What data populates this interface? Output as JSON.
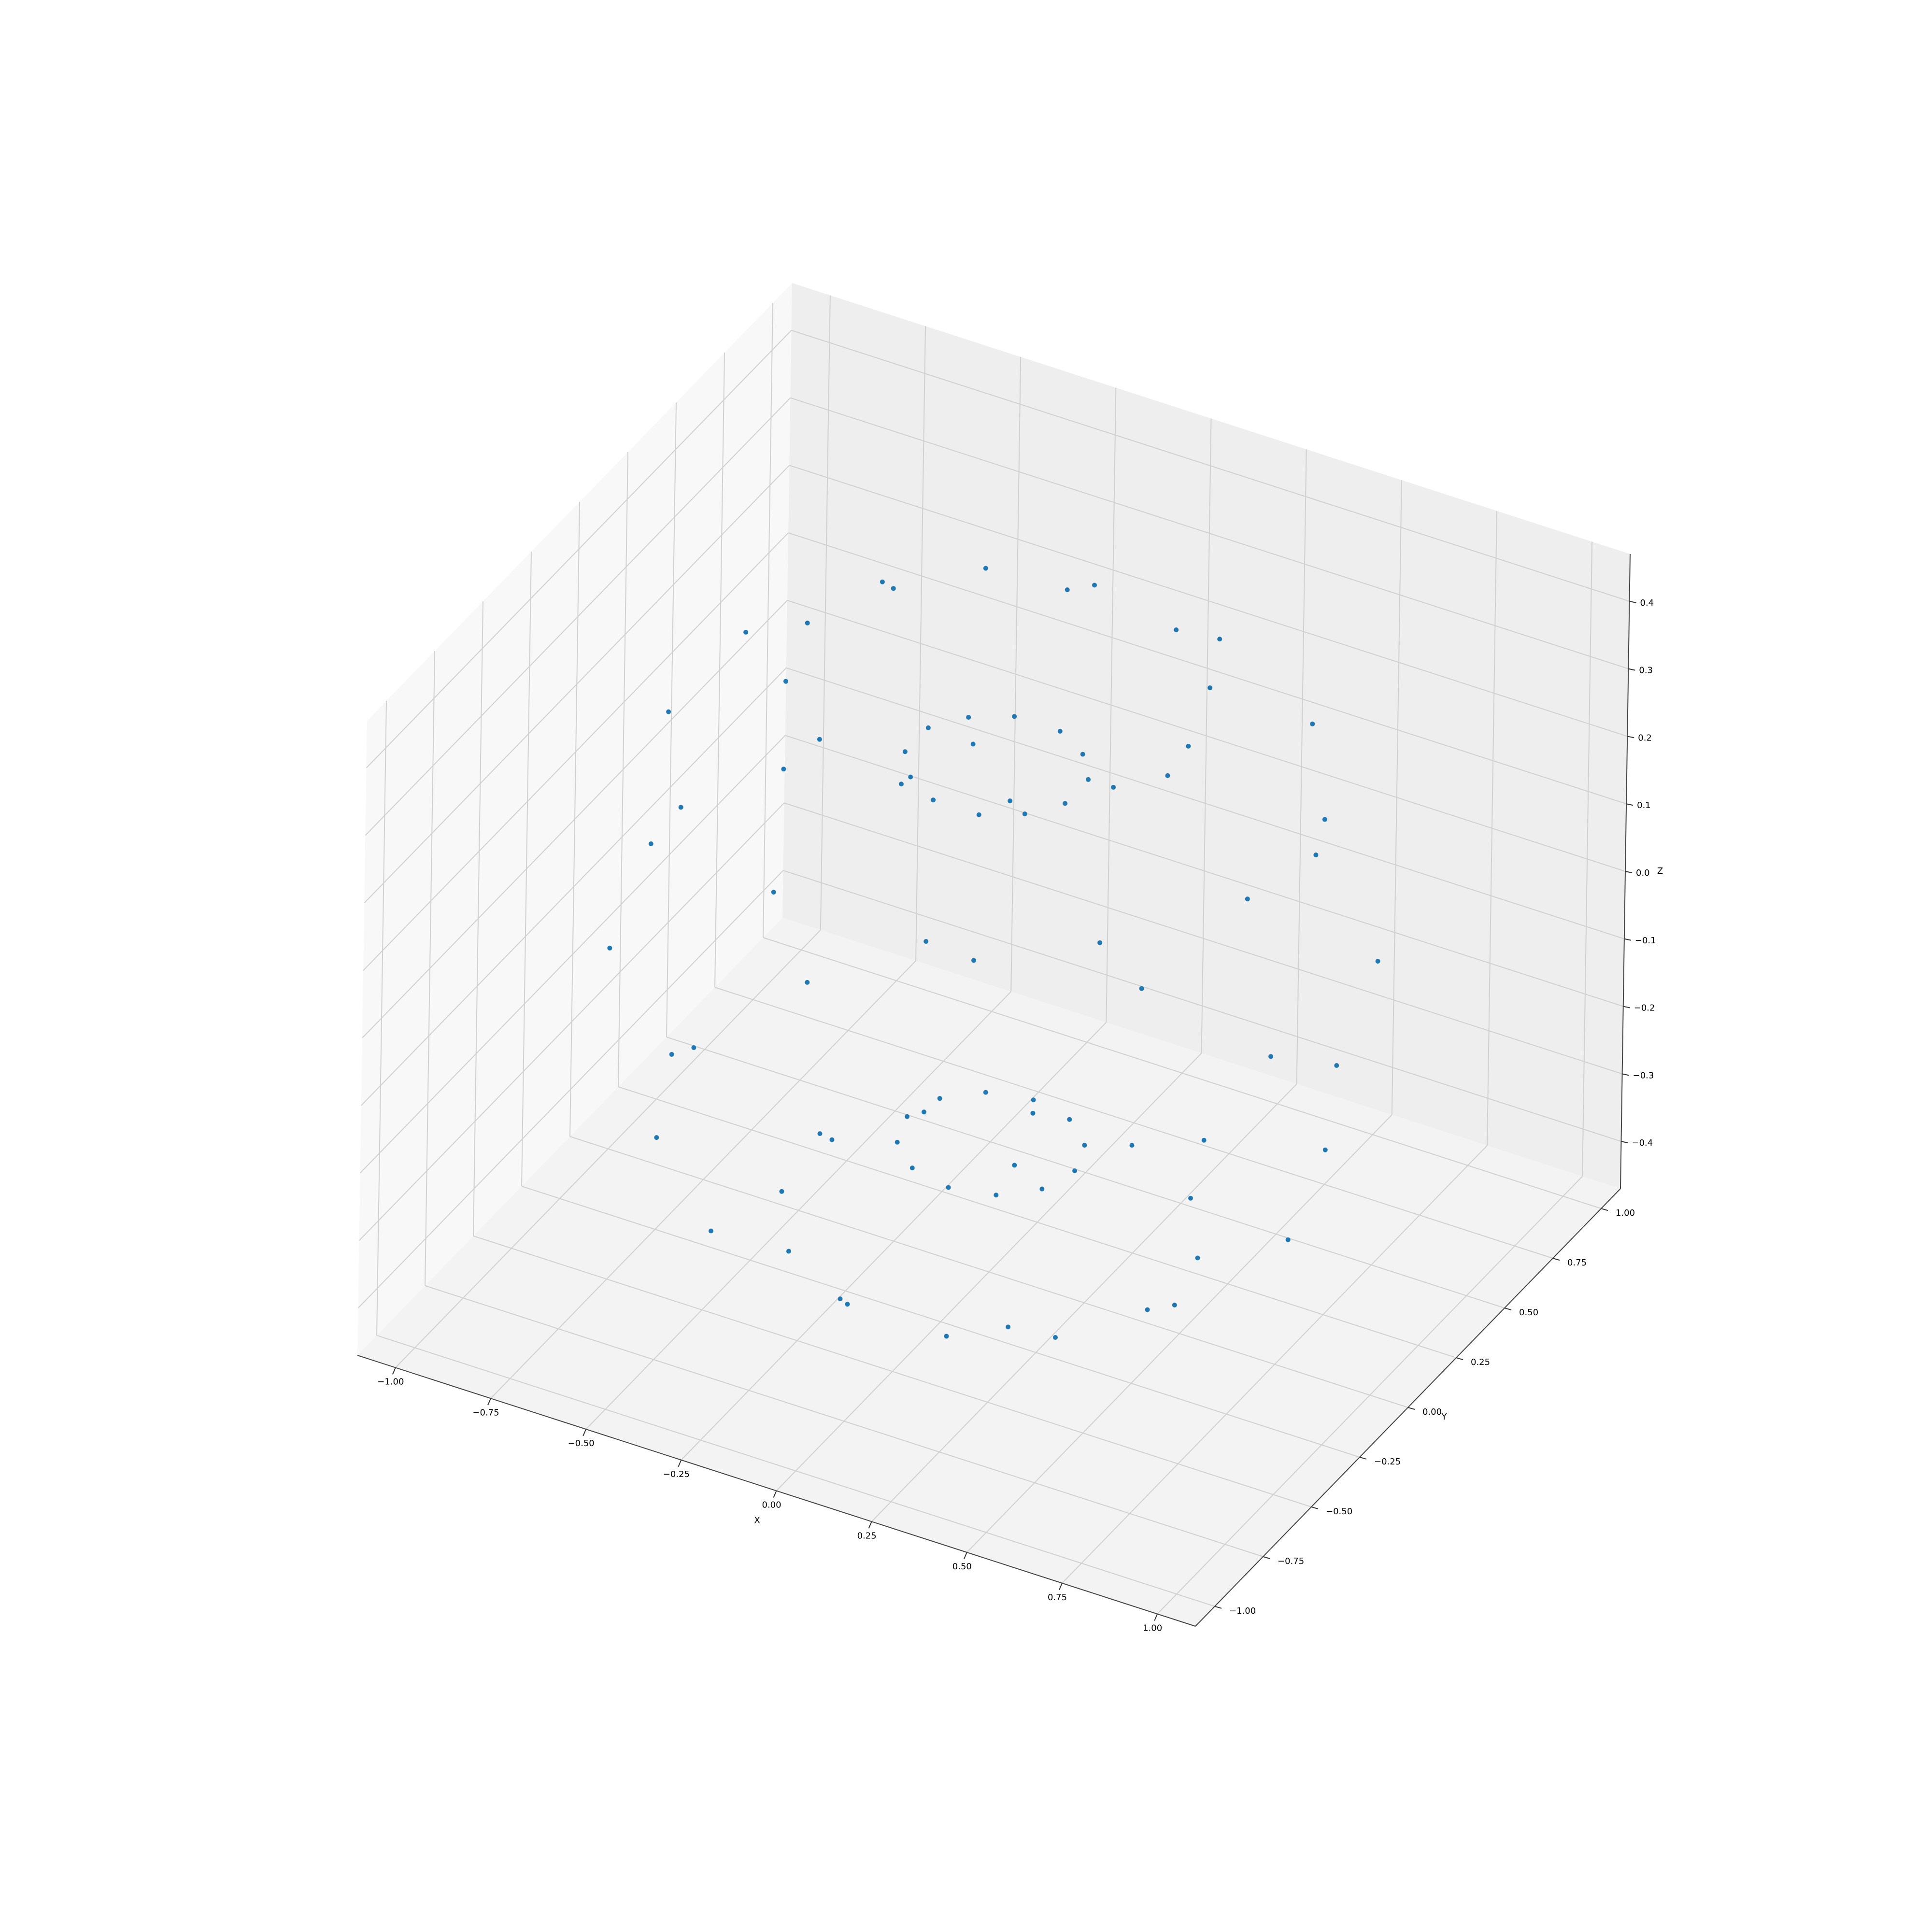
{
  "chart_data": {
    "type": "scatter3d",
    "xlabel": "X",
    "ylabel": "Y",
    "zlabel": "Z",
    "color": "#1f77b4",
    "xlim": [
      -1.1,
      1.1
    ],
    "ylim": [
      -1.1,
      1.1
    ],
    "zlim": [
      -0.47,
      0.47
    ],
    "xticks": [
      {
        "value": -1,
        "label": "−1.00"
      },
      {
        "value": -0.75,
        "label": "−0.75"
      },
      {
        "value": -0.5,
        "label": "−0.50"
      },
      {
        "value": -0.25,
        "label": "−0.25"
      },
      {
        "value": 0,
        "label": "0.00"
      },
      0.25,
      {
        "value": 0.5,
        "label": "0.50"
      },
      0.75,
      {
        "value": 1,
        "label": "1.00"
      }
    ],
    "yticks": [
      {
        "value": -1,
        "label": "−1.00"
      },
      {
        "value": -0.75,
        "label": "−0.75"
      },
      {
        "value": -0.5,
        "label": "−0.50"
      },
      {
        "value": -0.25,
        "label": "−0.25"
      },
      {
        "value": 0,
        "label": "0.00"
      },
      0.25,
      {
        "value": 0.5,
        "label": "0.50"
      },
      0.75,
      {
        "value": 1,
        "label": "1.00"
      }
    ],
    "zticks": [
      {
        "value": -0.4,
        "label": "−0.4"
      },
      {
        "value": -0.3,
        "label": "−0.3"
      },
      {
        "value": -0.2,
        "label": "−0.2"
      },
      {
        "value": -0.1,
        "label": "−0.1"
      },
      {
        "value": 0,
        "label": "0.0"
      },
      0.1,
      0.2,
      0.3,
      0.4
    ],
    "grid": true,
    "x": [
      0.9,
      0.78,
      0.45,
      0,
      -0.45,
      -0.78,
      -0.9,
      -0.78,
      -0.45,
      0,
      0.45,
      0.78,
      0.76,
      0.55,
      0.2,
      -0.2,
      -0.55,
      -0.76,
      -0.76,
      -0.55,
      -0.2,
      0.2,
      0.55,
      0.76,
      0.5,
      0.43,
      0.25,
      0,
      -0.25,
      -0.43,
      -0.5,
      -0.43,
      -0.25,
      0,
      0.25,
      0.43,
      0.21,
      0.15,
      0.06,
      -0.06,
      -0.15,
      -0.21,
      -0.21,
      -0.15,
      -0.06,
      0.06,
      0.15,
      0.21,
      0.22,
      0.19,
      0.11,
      0,
      -0.11,
      -0.19,
      -0.22,
      -0.19,
      -0.11,
      0,
      0.11,
      0.19,
      0.48,
      0.35,
      0.13,
      -0.13,
      -0.35,
      -0.48,
      -0.48,
      -0.35,
      -0.13,
      0.13,
      0.35,
      0.48,
      0.78,
      0.68,
      0.39,
      0,
      -0.39,
      -0.68,
      -0.78,
      -0.68,
      -0.39,
      0,
      0.39,
      0.68
    ],
    "y": [
      0,
      0.45,
      0.78,
      0.9,
      0.78,
      0.45,
      0,
      -0.45,
      -0.78,
      -0.9,
      -0.78,
      -0.45,
      0.2,
      0.55,
      0.76,
      0.76,
      0.55,
      0.2,
      -0.2,
      -0.55,
      -0.76,
      -0.76,
      -0.55,
      -0.2,
      0,
      0.25,
      0.43,
      0.5,
      0.43,
      0.25,
      0,
      -0.25,
      -0.43,
      -0.5,
      -0.43,
      -0.25,
      0.06,
      0.15,
      0.21,
      0.21,
      0.15,
      0.06,
      -0.06,
      -0.15,
      -0.21,
      -0.21,
      -0.15,
      -0.06,
      0,
      0.11,
      0.19,
      0.22,
      0.19,
      0.11,
      0,
      -0.11,
      -0.19,
      -0.22,
      -0.19,
      -0.11,
      0.13,
      0.35,
      0.48,
      0.48,
      0.35,
      0.13,
      -0.13,
      -0.35,
      -0.48,
      -0.48,
      -0.35,
      -0.13,
      0,
      0.39,
      0.68,
      0.78,
      0.68,
      0.39,
      0,
      -0.39,
      -0.68,
      -0.78,
      -0.68,
      -0.39
    ],
    "z": [
      0,
      0,
      0,
      0,
      0,
      0,
      0,
      0,
      0,
      0,
      0,
      0,
      0.28,
      0.28,
      0.28,
      0.28,
      0.28,
      0.28,
      0.28,
      0.28,
      0.28,
      0.28,
      0.28,
      0.28,
      0.4,
      0.4,
      0.4,
      0.4,
      0.4,
      0.4,
      0.4,
      0.4,
      0.4,
      0.4,
      0.4,
      0.4,
      0.28,
      0.28,
      0.28,
      0.28,
      0.28,
      0.28,
      0.28,
      0.28,
      0.28,
      0.28,
      0.28,
      0.28,
      -0.28,
      -0.28,
      -0.28,
      -0.28,
      -0.28,
      -0.28,
      -0.28,
      -0.28,
      -0.28,
      -0.28,
      -0.28,
      -0.28,
      -0.4,
      -0.4,
      -0.4,
      -0.4,
      -0.4,
      -0.4,
      -0.4,
      -0.4,
      -0.4,
      -0.4,
      -0.4,
      -0.4,
      -0.28,
      -0.28,
      -0.28,
      -0.28,
      -0.28,
      -0.28,
      -0.28,
      -0.28,
      -0.28,
      -0.28,
      -0.28,
      -0.28
    ]
  }
}
